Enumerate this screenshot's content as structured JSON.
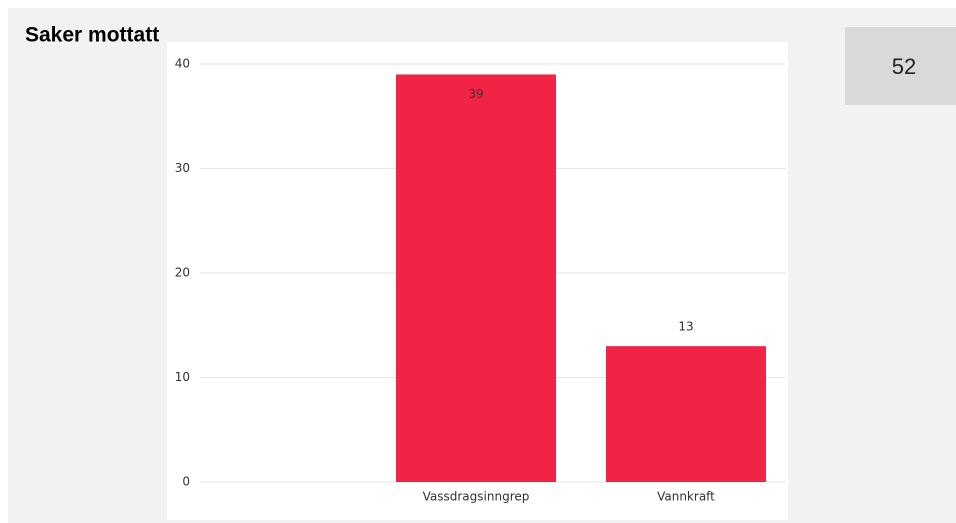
{
  "chart_data": {
    "type": "bar",
    "title": "Saker mottatt",
    "categories": [
      null,
      "Vassdragsinngrep",
      "Vannkraft"
    ],
    "values": [
      null,
      39,
      13
    ],
    "color": "#f22446",
    "ylim": [
      0,
      40
    ],
    "yticks": [
      0,
      10,
      20,
      30,
      40
    ],
    "grid": true
  },
  "card": {
    "value": 52
  }
}
